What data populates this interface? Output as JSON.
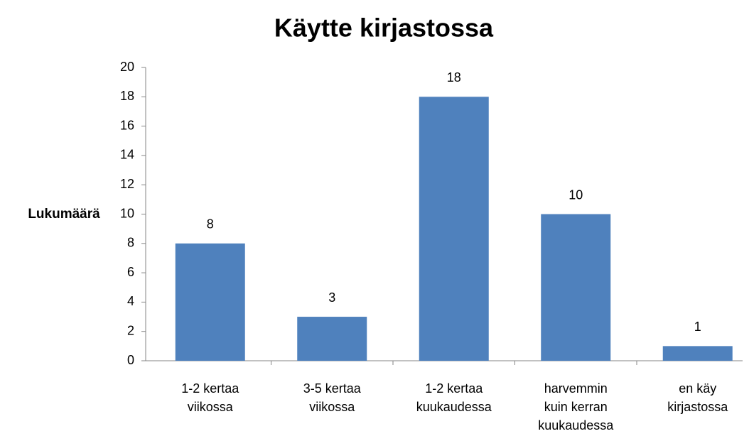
{
  "chart_data": {
    "type": "bar",
    "title": "Käytte kirjastossa",
    "y_label": "Lukumäärä",
    "categories": [
      "1-2 kertaa viikossa",
      "3-5 kertaa viikossa",
      "1-2 kertaa kuukaudessa",
      "harvemmin kuin kerran kuukaudessa",
      "en käy kirjastossa"
    ],
    "values": [
      8,
      3,
      18,
      10,
      1
    ],
    "color": "#4f81bd",
    "ylim": [
      0,
      20
    ],
    "yticks": [
      0,
      2,
      4,
      6,
      8,
      10,
      12,
      14,
      16,
      18,
      20
    ],
    "grid": false
  }
}
